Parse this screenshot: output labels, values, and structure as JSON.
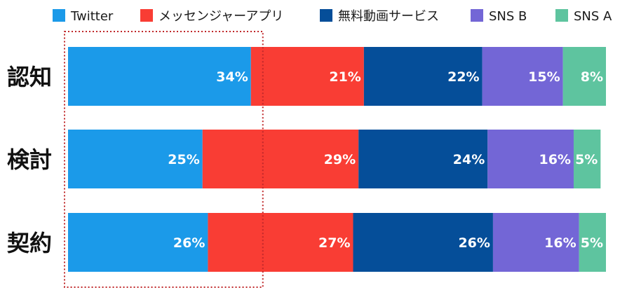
{
  "chart_data": {
    "type": "bar",
    "orientation": "horizontal",
    "stacked": true,
    "percent": true,
    "title": "",
    "xlabel": "",
    "ylabel": "",
    "xlim": [
      0,
      100
    ],
    "grid": false,
    "legend_position": "top",
    "categories": [
      "認知",
      "検討",
      "契約"
    ],
    "series": [
      {
        "name": "Twitter",
        "color": "#1b9ae9",
        "values": [
          34,
          25,
          26
        ],
        "labels": [
          "34%",
          "25%",
          "26%"
        ]
      },
      {
        "name": "メッセンジャーアプリ",
        "color": "#f93d34",
        "values": [
          21,
          29,
          27
        ],
        "labels": [
          "21%",
          "29%",
          "27%"
        ]
      },
      {
        "name": "無料動画サービス",
        "color": "#054e99",
        "values": [
          22,
          24,
          26
        ],
        "labels": [
          "22%",
          "24%",
          "26%"
        ]
      },
      {
        "name": "SNS B",
        "color": "#7366d6",
        "values": [
          15,
          16,
          16
        ],
        "labels": [
          "15%",
          "16%",
          "16%"
        ]
      },
      {
        "name": "SNS A",
        "color": "#5ec49f",
        "values": [
          8,
          5,
          5
        ],
        "labels": [
          "8%",
          "5%",
          "5%"
        ]
      }
    ],
    "annotation": {
      "type": "dotted-box",
      "around_series": "Twitter",
      "color": "#c0282a"
    }
  }
}
